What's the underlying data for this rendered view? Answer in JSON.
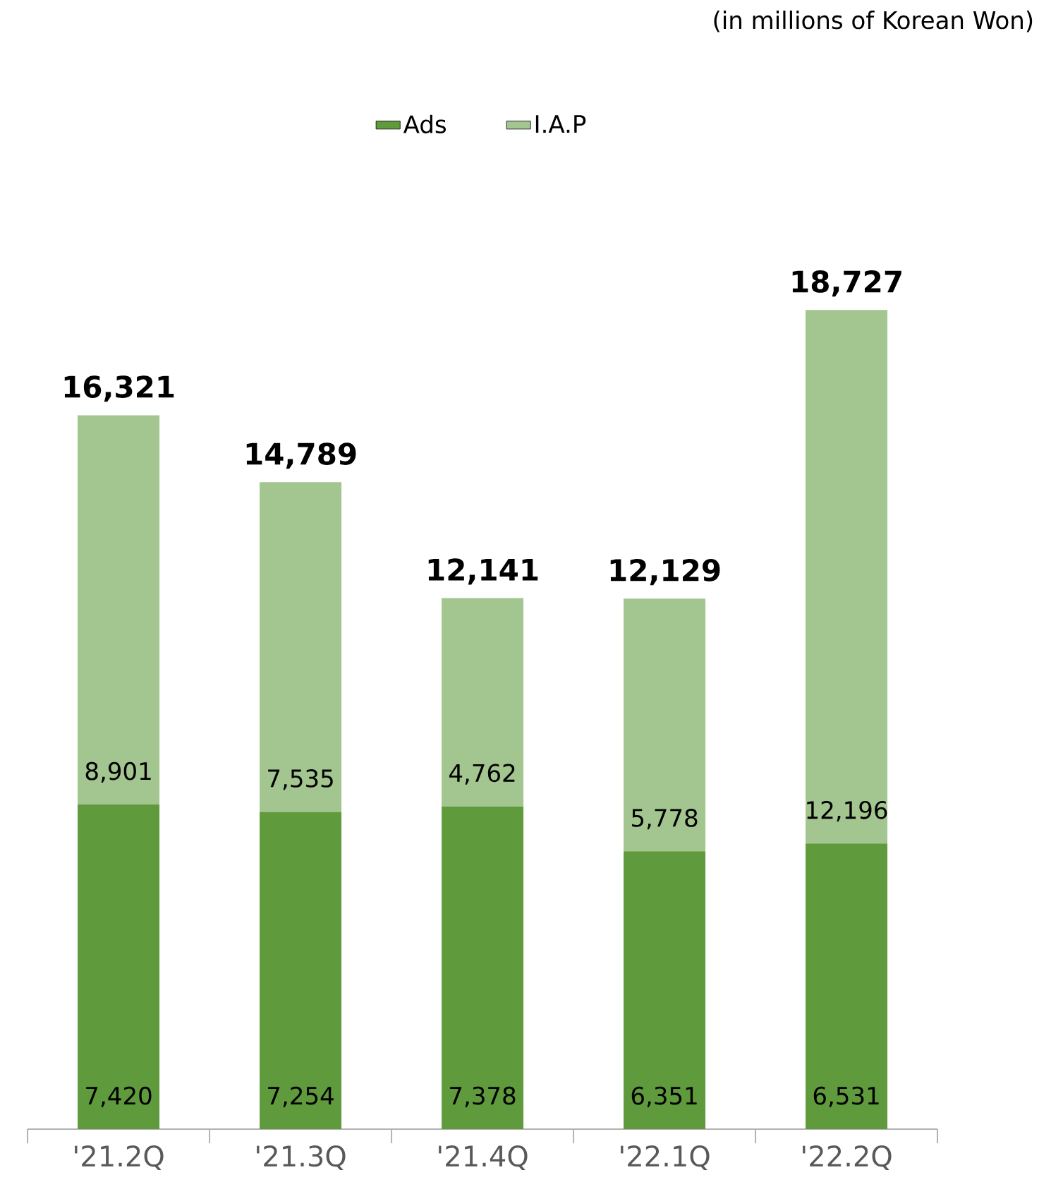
{
  "chart_data": {
    "type": "bar",
    "stacked": true,
    "legend": "top",
    "categories": [
      "'21.2Q",
      "'21.3Q",
      "'21.4Q",
      "'22.1Q",
      "'22.2Q"
    ],
    "series": [
      {
        "name": "Ads",
        "color": "#5f9a3c",
        "values": [
          7420,
          7254,
          7378,
          6351,
          6531
        ],
        "value_labels": [
          "7,420",
          "7,254",
          "7,378",
          "6,351",
          "6,531"
        ]
      },
      {
        "name": "I.A.P",
        "color": "#a3c58f",
        "values": [
          8901,
          7535,
          4762,
          5778,
          12196
        ],
        "value_labels": [
          "8,901",
          "7,535",
          "4,762",
          "5,778",
          "12,196"
        ]
      }
    ],
    "totals": [
      "16,321",
      "14,789",
      "12,141",
      "12,129",
      "18,727"
    ],
    "annotations": [
      "(in millions of Korean Won)"
    ]
  }
}
